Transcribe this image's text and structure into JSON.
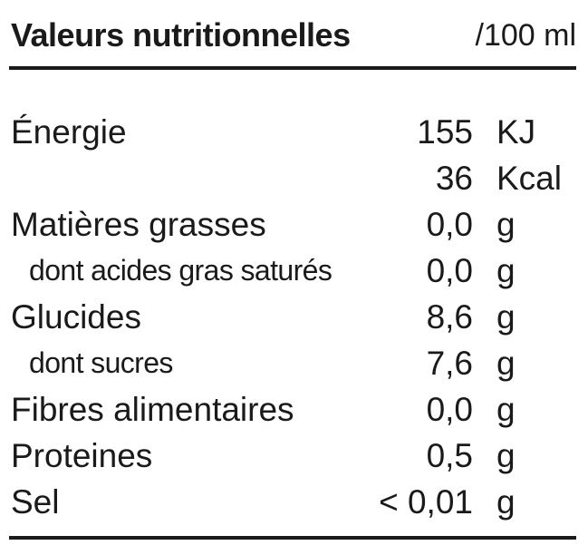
{
  "header": {
    "title": "Valeurs nutritionnelles",
    "unit": "/100 ml"
  },
  "rows": [
    {
      "label": "Énergie",
      "value": "155",
      "unit": "KJ",
      "sub": false
    },
    {
      "label": "",
      "value": "36",
      "unit": "Kcal",
      "sub": false
    },
    {
      "label": "Matières grasses",
      "value": "0,0",
      "unit": "g",
      "sub": false
    },
    {
      "label": "dont acides gras saturés",
      "value": "0,0",
      "unit": "g",
      "sub": true
    },
    {
      "label": "Glucides",
      "value": "8,6",
      "unit": "g",
      "sub": false
    },
    {
      "label": "dont sucres",
      "value": "7,6",
      "unit": "g",
      "sub": true
    },
    {
      "label": "Fibres alimentaires",
      "value": "0,0",
      "unit": "g",
      "sub": false
    },
    {
      "label": "Proteines",
      "value": "0,5",
      "unit": "g",
      "sub": false
    },
    {
      "label": "Sel",
      "value": "< 0,01",
      "unit": "g",
      "sub": false
    }
  ]
}
